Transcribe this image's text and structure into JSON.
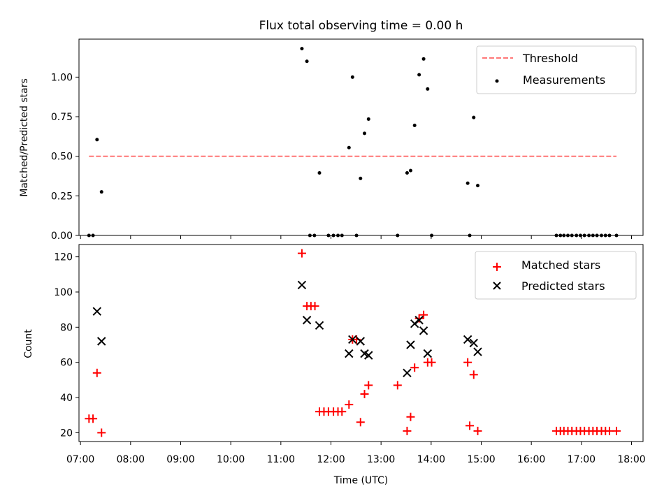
{
  "chart_data": [
    {
      "type": "scatter",
      "title": "Flux total observing time = 0.00 h",
      "ylabel": "Matched/Predicted stars",
      "xlim": [
        6.97,
        18.23
      ],
      "ylim": [
        0,
        1.24
      ],
      "yticks": [
        0.0,
        0.25,
        0.5,
        0.75,
        1.0
      ],
      "ytick_labels": [
        "0.00",
        "0.25",
        "0.50",
        "0.75",
        "1.00"
      ],
      "legend_position": "top-right",
      "legend": [
        {
          "label": "Threshold",
          "style": "dashed-line",
          "color": "#ff7777"
        },
        {
          "label": "Measurements",
          "style": "dot",
          "color": "#000000"
        }
      ],
      "threshold": {
        "value": 0.5,
        "x": [
          7.17,
          17.7
        ],
        "color": "#ff7777"
      },
      "series": [
        {
          "name": "Measurements",
          "color": "#000000",
          "points": [
            [
              7.17,
              0
            ],
            [
              7.25,
              0
            ],
            [
              7.33,
              0.605
            ],
            [
              7.42,
              0.275
            ],
            [
              11.42,
              1.18
            ],
            [
              11.52,
              1.1
            ],
            [
              11.58,
              0
            ],
            [
              11.67,
              0
            ],
            [
              11.77,
              0.395
            ],
            [
              11.95,
              0
            ],
            [
              12.05,
              0
            ],
            [
              12.14,
              0
            ],
            [
              12.22,
              0
            ],
            [
              12.36,
              0.555
            ],
            [
              12.43,
              1.0
            ],
            [
              12.51,
              0
            ],
            [
              12.59,
              0.36
            ],
            [
              12.67,
              0.645
            ],
            [
              12.75,
              0.735
            ],
            [
              13.33,
              0
            ],
            [
              13.52,
              0.395
            ],
            [
              13.59,
              0.41
            ],
            [
              13.67,
              0.695
            ],
            [
              13.76,
              1.015
            ],
            [
              13.85,
              1.115
            ],
            [
              13.93,
              0.925
            ],
            [
              14.01,
              0
            ],
            [
              14.73,
              0.33
            ],
            [
              14.77,
              0
            ],
            [
              14.85,
              0.745
            ],
            [
              14.93,
              0.315
            ],
            [
              16.5,
              0
            ],
            [
              16.58,
              0
            ],
            [
              16.65,
              0
            ],
            [
              16.73,
              0
            ],
            [
              16.81,
              0
            ],
            [
              16.9,
              0
            ],
            [
              16.98,
              0
            ],
            [
              17.06,
              0
            ],
            [
              17.15,
              0
            ],
            [
              17.23,
              0
            ],
            [
              17.31,
              0
            ],
            [
              17.4,
              0
            ],
            [
              17.48,
              0
            ],
            [
              17.56,
              0
            ],
            [
              17.7,
              0
            ]
          ]
        }
      ]
    },
    {
      "type": "scatter",
      "xlabel": "Time (UTC)",
      "ylabel": "Count",
      "xlim": [
        6.97,
        18.23
      ],
      "ylim": [
        15,
        127
      ],
      "yticks": [
        20,
        40,
        60,
        80,
        100,
        120
      ],
      "ytick_labels": [
        "20",
        "40",
        "60",
        "80",
        "100",
        "120"
      ],
      "xticks": [
        7,
        8,
        9,
        10,
        11,
        12,
        13,
        14,
        15,
        16,
        17,
        18
      ],
      "xtick_labels": [
        "07:00",
        "08:00",
        "09:00",
        "10:00",
        "11:00",
        "12:00",
        "13:00",
        "14:00",
        "15:00",
        "16:00",
        "17:00",
        "18:00"
      ],
      "legend_position": "top-right",
      "legend": [
        {
          "label": "Matched stars",
          "style": "plus",
          "color": "#ff0000"
        },
        {
          "label": "Predicted stars",
          "style": "x",
          "color": "#000000"
        }
      ],
      "series": [
        {
          "name": "Matched stars",
          "marker": "plus",
          "color": "#ff0000",
          "points": [
            [
              7.17,
              28
            ],
            [
              7.25,
              28
            ],
            [
              7.33,
              54
            ],
            [
              7.42,
              20
            ],
            [
              11.42,
              122
            ],
            [
              11.52,
              92
            ],
            [
              11.6,
              92
            ],
            [
              11.68,
              92
            ],
            [
              11.77,
              32
            ],
            [
              11.86,
              32
            ],
            [
              11.95,
              32
            ],
            [
              12.05,
              32
            ],
            [
              12.14,
              32
            ],
            [
              12.22,
              32
            ],
            [
              12.36,
              36
            ],
            [
              12.43,
              73
            ],
            [
              12.51,
              73
            ],
            [
              12.59,
              26
            ],
            [
              12.67,
              42
            ],
            [
              12.75,
              47
            ],
            [
              13.33,
              47
            ],
            [
              13.52,
              21
            ],
            [
              13.59,
              29
            ],
            [
              13.67,
              57
            ],
            [
              13.76,
              85
            ],
            [
              13.85,
              87
            ],
            [
              13.93,
              60
            ],
            [
              14.01,
              60
            ],
            [
              14.73,
              60
            ],
            [
              14.77,
              24
            ],
            [
              14.85,
              53
            ],
            [
              14.93,
              21
            ],
            [
              16.5,
              21
            ],
            [
              16.58,
              21
            ],
            [
              16.65,
              21
            ],
            [
              16.73,
              21
            ],
            [
              16.81,
              21
            ],
            [
              16.9,
              21
            ],
            [
              16.98,
              21
            ],
            [
              17.06,
              21
            ],
            [
              17.15,
              21
            ],
            [
              17.23,
              21
            ],
            [
              17.31,
              21
            ],
            [
              17.4,
              21
            ],
            [
              17.48,
              21
            ],
            [
              17.56,
              21
            ],
            [
              17.7,
              21
            ]
          ]
        },
        {
          "name": "Predicted stars",
          "marker": "x",
          "color": "#000000",
          "points": [
            [
              7.33,
              89
            ],
            [
              7.42,
              72
            ],
            [
              11.42,
              104
            ],
            [
              11.52,
              84
            ],
            [
              11.77,
              81
            ],
            [
              12.36,
              65
            ],
            [
              12.43,
              73
            ],
            [
              12.59,
              72
            ],
            [
              12.67,
              65
            ],
            [
              12.75,
              64
            ],
            [
              13.52,
              54
            ],
            [
              13.59,
              70
            ],
            [
              13.67,
              82
            ],
            [
              13.76,
              84
            ],
            [
              13.85,
              78
            ],
            [
              13.93,
              65
            ],
            [
              14.73,
              73
            ],
            [
              14.85,
              71
            ],
            [
              14.93,
              66
            ]
          ]
        }
      ]
    }
  ]
}
